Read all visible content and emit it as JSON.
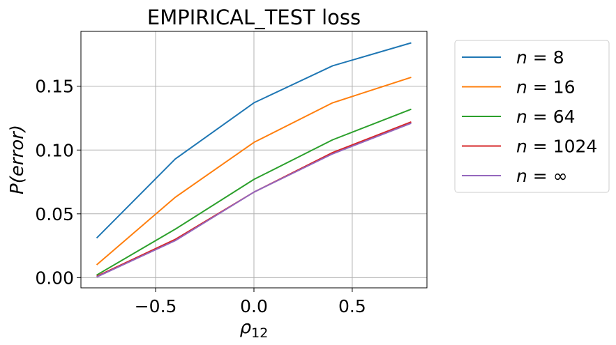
{
  "chart_data": {
    "type": "line",
    "title": "EMPIRICAL_TEST loss",
    "xlabel": "ρ12",
    "xlabel_parts": {
      "main": "ρ",
      "sub": "12"
    },
    "ylabel": "P(error)",
    "xlim": [
      -0.88,
      0.88
    ],
    "ylim": [
      -0.008,
      0.193
    ],
    "x_ticks": [
      -0.5,
      0.0,
      0.5
    ],
    "x_tick_labels": [
      "−0.5",
      "0.0",
      "0.5"
    ],
    "y_ticks": [
      0.0,
      0.05,
      0.1,
      0.15
    ],
    "y_tick_labels": [
      "0.00",
      "0.05",
      "0.10",
      "0.15"
    ],
    "grid": true,
    "legend_position": "outside-right",
    "x": [
      -0.8,
      -0.4,
      0.0,
      0.4,
      0.8
    ],
    "series": [
      {
        "name": "n = 8",
        "var": "n",
        "value": "8",
        "color": "#1f77b4",
        "values": [
          0.031,
          0.093,
          0.137,
          0.166,
          0.184
        ]
      },
      {
        "name": "n = 16",
        "var": "n",
        "value": "16",
        "color": "#ff7f0e",
        "values": [
          0.01,
          0.063,
          0.106,
          0.137,
          0.157
        ]
      },
      {
        "name": "n = 64",
        "var": "n",
        "value": "64",
        "color": "#2ca02c",
        "values": [
          0.002,
          0.038,
          0.077,
          0.108,
          0.132
        ]
      },
      {
        "name": "n = 1024",
        "var": "n",
        "value": "1024",
        "color": "#d62728",
        "values": [
          0.001,
          0.03,
          0.067,
          0.098,
          0.122
        ]
      },
      {
        "name": "n = ∞",
        "var": "n",
        "value": "∞",
        "color": "#9467bd",
        "values": [
          0.0005,
          0.029,
          0.067,
          0.097,
          0.121
        ]
      }
    ]
  }
}
